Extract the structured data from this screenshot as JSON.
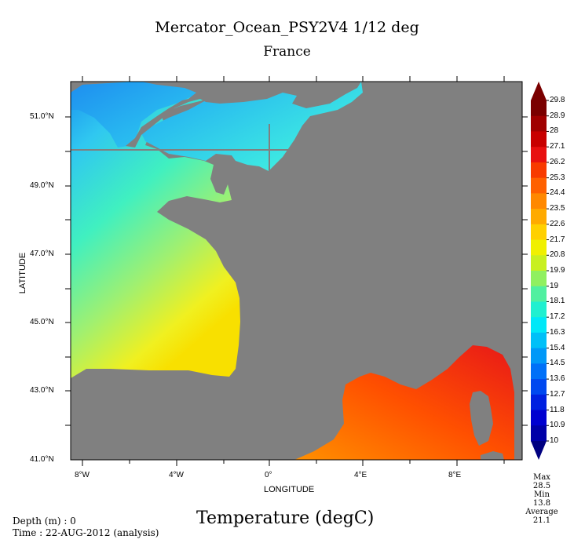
{
  "title": "Mercator_Ocean_PSY2V4 1/12 deg",
  "subtitle": "France",
  "variable_title": "Temperature (degC)",
  "footer": {
    "depth": "Depth (m) : 0",
    "time": "Time : 22-AUG-2012 (analysis)"
  },
  "axes": {
    "xlabel": "LONGITUDE",
    "ylabel": "LATITUDE",
    "x_ticks": [
      "8°W",
      "4°W",
      "0°",
      "4°E",
      "8°E"
    ],
    "y_ticks": [
      "51.0°N",
      "49.0°N",
      "47.0°N",
      "45.0°N",
      "43.0°N",
      "41.0°N"
    ]
  },
  "colorbar": {
    "labels": [
      "29.8",
      "28.9",
      "28",
      "27.1",
      "26.2",
      "25.3",
      "24.4",
      "23.5",
      "22.6",
      "21.7",
      "20.8",
      "19.9",
      "19",
      "18.1",
      "17.2",
      "16.3",
      "15.4",
      "14.5",
      "13.6",
      "12.7",
      "11.8",
      "10.9",
      "10"
    ],
    "colors": [
      "#7a0000",
      "#a00000",
      "#c80000",
      "#e81010",
      "#f83a00",
      "#ff6000",
      "#ff8800",
      "#ffaa00",
      "#ffd000",
      "#f0f000",
      "#c8f020",
      "#90f060",
      "#50f0a0",
      "#20f0d0",
      "#00e8f8",
      "#00c0f8",
      "#0098f8",
      "#0070f8",
      "#0048f0",
      "#0020e0",
      "#0000d0",
      "#0000a8",
      "#000080"
    ]
  },
  "stats": {
    "max_label": "Max",
    "max_value": "28.5",
    "min_label": "Min",
    "min_value": "13.8",
    "avg_label": "Average",
    "avg_value": "21.1"
  }
}
